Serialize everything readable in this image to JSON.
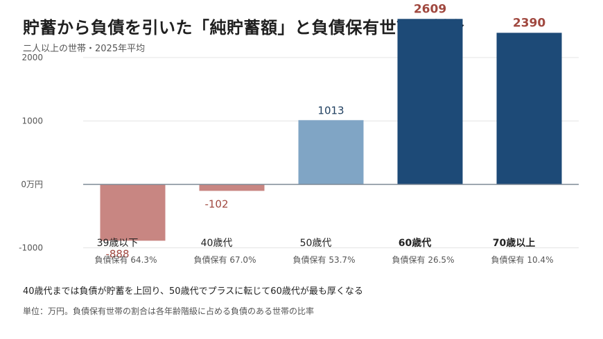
{
  "title": "貯蓄から負債を引いた「純貯蓄額」と負債保有世帯の割合",
  "subtitle": "二人以上の世帯・2025年平均",
  "footnotes": {
    "summary": "40歳代までは負債が貯蓄を上回り、50歳代でプラスに転じて60歳代が最も厚くなる",
    "unit_note": "単位：万円。負債保有世帯の割合は各年齢階級に占める負債のある世帯の比率"
  },
  "colors": {
    "negative": "#c88682",
    "negative_label": "#a0483f",
    "mid_positive": "#80a5c5",
    "positive": "#1d4a77",
    "positive_label_mid": "#1d3d5e",
    "positive_label_high": "#a0483f",
    "grid": "#e4e4e4",
    "zero_line": "#7f8a96",
    "axis_text": "#555555"
  },
  "chart_data": {
    "type": "bar",
    "title": "貯蓄から負債を引いた「純貯蓄額」と負債保有世帯の割合",
    "subtitle": "二人以上の世帯・2025年平均",
    "categories": [
      "39歳以下",
      "40歳代",
      "50歳代",
      "60歳代",
      "70歳以上"
    ],
    "values": [
      -888,
      -102,
      1013,
      2609,
      2390
    ],
    "value_labels": [
      "-888",
      "-102",
      "1013",
      "2609",
      "2390"
    ],
    "highlighted_categories": [
      "60歳代",
      "70歳以上"
    ],
    "debt_ratio": [
      64.3,
      67.0,
      53.7,
      26.5,
      10.4
    ],
    "debt_ratio_labels": [
      "負債保有 64.3%",
      "負債保有 67.0%",
      "負債保有 53.7%",
      "負債保有 26.5%",
      "負債保有 10.4%"
    ],
    "bar_colors": [
      "#c88682",
      "#c88682",
      "#80a5c5",
      "#1d4a77",
      "#1d4a77"
    ],
    "value_label_colors": [
      "#a0483f",
      "#a0483f",
      "#1d3d5e",
      "#a0483f",
      "#a0483f"
    ],
    "yticks": [
      -1000,
      0,
      1000,
      2000
    ],
    "ytick_labels": [
      "-1000",
      "0万円",
      "1000",
      "2000"
    ],
    "ylim": [
      -1000,
      2609
    ],
    "grid": true,
    "legend": "none"
  }
}
